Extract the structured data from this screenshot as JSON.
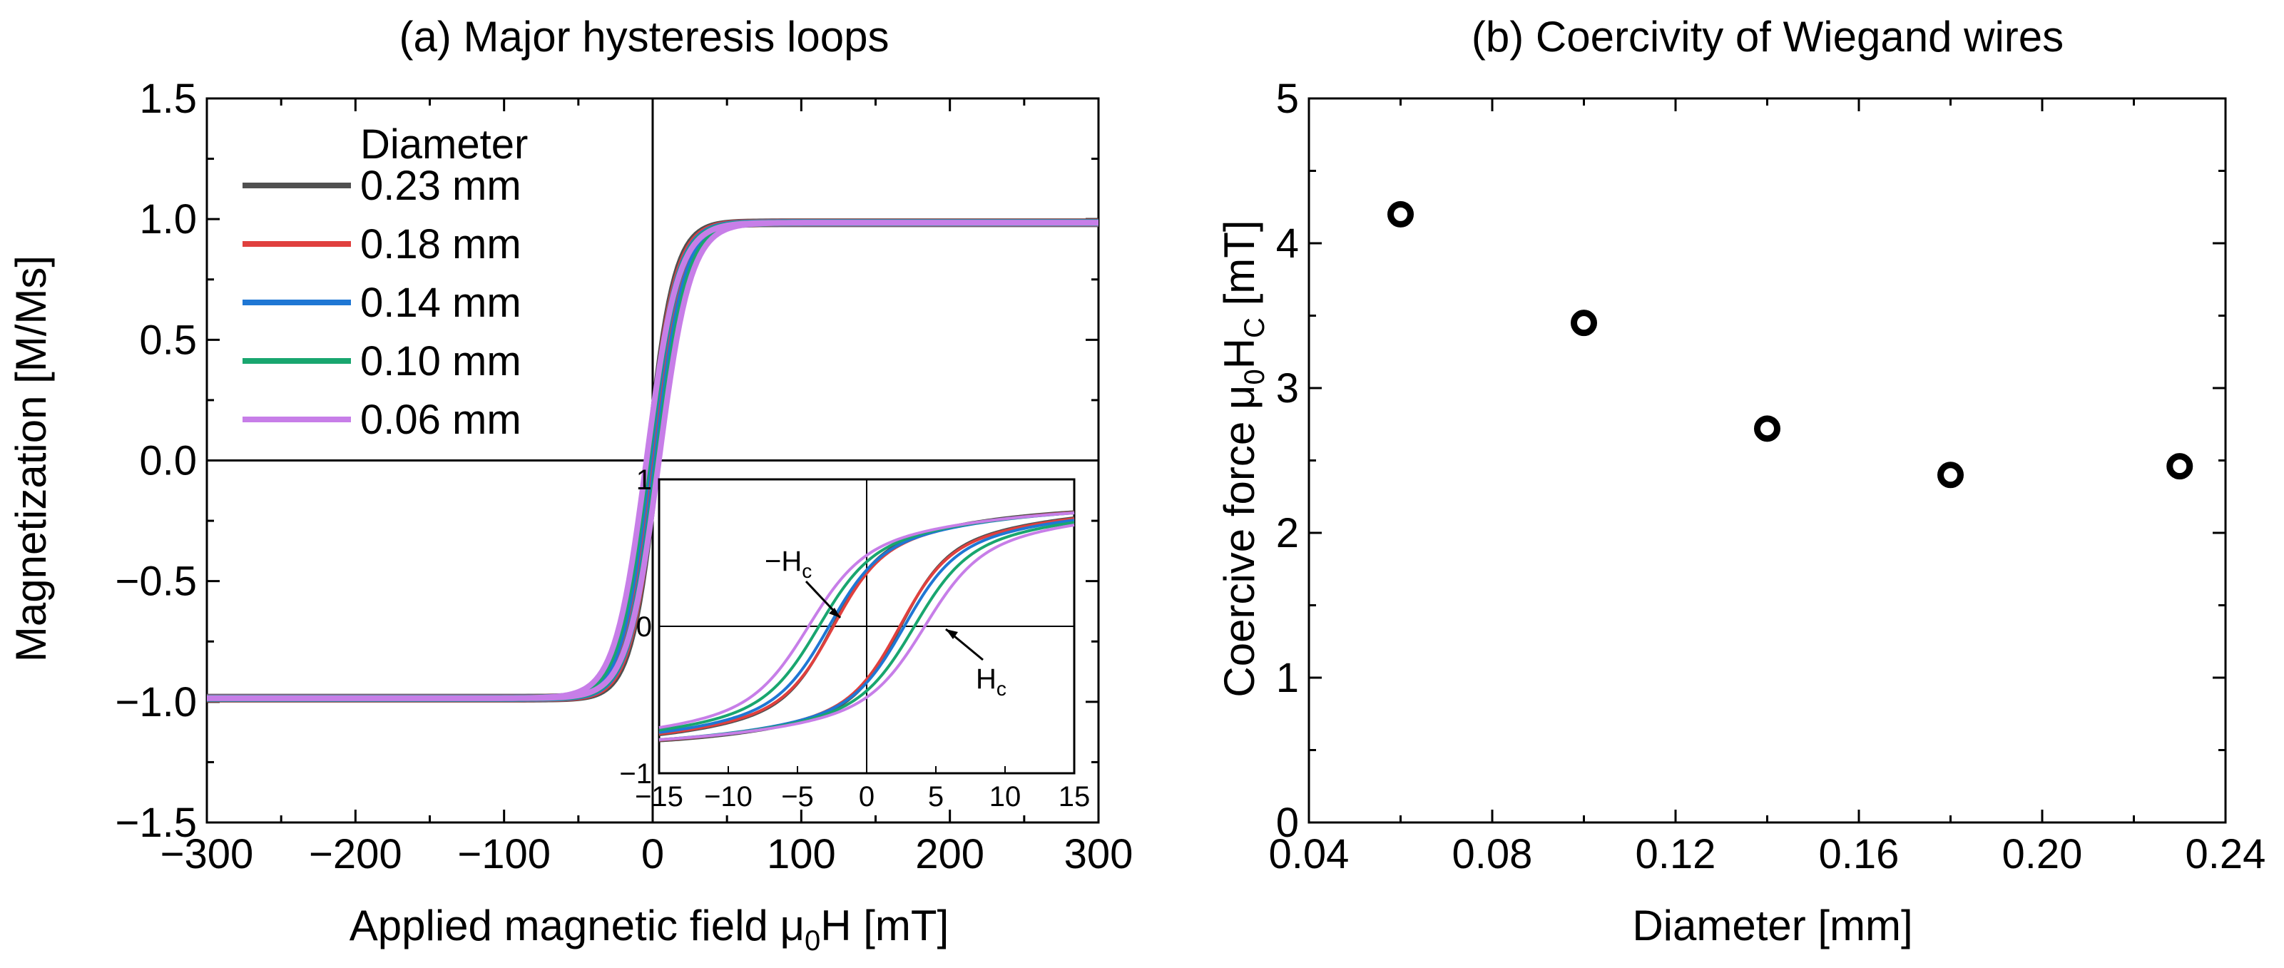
{
  "chart_data": [
    {
      "id": "a",
      "type": "line",
      "title": "(a) Major hysteresis loops",
      "xlabel": "Applied magnetic field μ0H [mT]",
      "xlabel_parts": [
        "Applied magnetic field μ",
        "0",
        "H [mT]"
      ],
      "ylabel": "Magnetization [M/Ms]",
      "xlim": [
        -300,
        300
      ],
      "ylim": [
        -1.5,
        1.5
      ],
      "xticks": [
        -300,
        -200,
        -100,
        0,
        100,
        200,
        300
      ],
      "xtick_labels": [
        "−300",
        "−200",
        "−100",
        "0",
        "100",
        "200",
        "300"
      ],
      "yticks": [
        1.5,
        1.0,
        0.5,
        0.0,
        -0.5,
        -1.0,
        -1.5
      ],
      "ytick_labels": [
        "1.5",
        "1.0",
        "0.5",
        "0.0",
        "−0.5",
        "−1.0",
        "−1.5"
      ],
      "legend_title": "Diameter",
      "legend_position": "top-left",
      "series": [
        {
          "name": "0.23 mm",
          "color": "#505050",
          "Hc": 2.46,
          "width": 12
        },
        {
          "name": "0.18 mm",
          "color": "#e0403e",
          "Hc": 2.4,
          "width": 11
        },
        {
          "name": "0.14 mm",
          "color": "#1f77d4",
          "Hc": 2.72,
          "width": 10
        },
        {
          "name": "0.10 mm",
          "color": "#19a66f",
          "Hc": 3.45,
          "width": 9
        },
        {
          "name": "0.06 mm",
          "color": "#c77ee8",
          "Hc": 4.2,
          "width": 8
        }
      ],
      "inset": {
        "xlim": [
          -15,
          15
        ],
        "ylim": [
          -1,
          1
        ],
        "xticks": [
          -15,
          -10,
          -5,
          0,
          5,
          10,
          15
        ],
        "xtick_labels": [
          "−15",
          "−10",
          "−5",
          "0",
          "5",
          "10",
          "15"
        ],
        "yticks": [
          1,
          0,
          -1
        ],
        "ytick_labels": [
          "1",
          "0",
          "−1"
        ],
        "annotations": [
          {
            "text": "−H",
            "sub": "c"
          },
          {
            "text": "H",
            "sub": "c"
          }
        ]
      }
    },
    {
      "id": "b",
      "type": "scatter",
      "title": "(b) Coercivity of Wiegand wires",
      "xlabel": "Diameter [mm]",
      "ylabel": "Coercive force μ0HC [mT]",
      "ylabel_parts": [
        "Coercive force μ",
        "0",
        "H",
        "C",
        " [mT]"
      ],
      "xlim": [
        0.04,
        0.24
      ],
      "ylim": [
        0,
        5
      ],
      "xticks": [
        0.04,
        0.08,
        0.12,
        0.16,
        0.2,
        0.24
      ],
      "xtick_labels": [
        "0.04",
        "0.08",
        "0.12",
        "0.16",
        "0.20",
        "0.24"
      ],
      "yticks": [
        0,
        1,
        2,
        3,
        4,
        5
      ],
      "ytick_labels": [
        "0",
        "1",
        "2",
        "3",
        "4",
        "5"
      ],
      "x": [
        0.06,
        0.1,
        0.14,
        0.18,
        0.23
      ],
      "y": [
        4.2,
        3.45,
        2.72,
        2.4,
        2.46
      ],
      "marker": "open-circle",
      "marker_color": "#000000"
    }
  ]
}
